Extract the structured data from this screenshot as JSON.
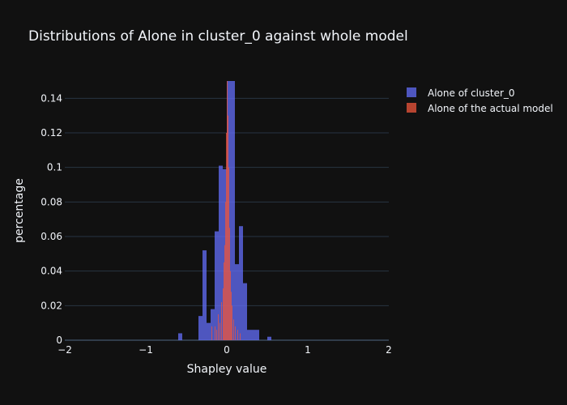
{
  "chart_data": {
    "type": "bar",
    "title": "Distributions of Alone in cluster_0 against whole model",
    "xlabel": "Shapley value",
    "ylabel": "percentage",
    "xlim": [
      -2,
      2
    ],
    "ylim": [
      0,
      0.15
    ],
    "x_ticks": [
      "−2",
      "−1",
      "0",
      "1",
      "2"
    ],
    "y_ticks": [
      "0",
      "0.02",
      "0.04",
      "0.06",
      "0.08",
      "0.1",
      "0.12",
      "0.14"
    ],
    "y_tick_values": [
      0,
      0.02,
      0.04,
      0.06,
      0.08,
      0.1,
      0.12,
      0.14
    ],
    "grid": true,
    "legend_position": "top-right",
    "series": [
      {
        "name": "Alone of cluster_0",
        "color": "#636efa",
        "bin_width": 0.05,
        "bins": [
          [
            -0.6,
            0.004
          ],
          [
            -0.35,
            0.014
          ],
          [
            -0.3,
            0.052
          ],
          [
            -0.25,
            0.01
          ],
          [
            -0.2,
            0.018
          ],
          [
            -0.15,
            0.063
          ],
          [
            -0.1,
            0.101
          ],
          [
            -0.05,
            0.099
          ],
          [
            0.0,
            0.15
          ],
          [
            0.05,
            0.15
          ],
          [
            0.1,
            0.044
          ],
          [
            0.15,
            0.066
          ],
          [
            0.2,
            0.033
          ],
          [
            0.25,
            0.006
          ],
          [
            0.3,
            0.006
          ],
          [
            0.35,
            0.006
          ],
          [
            0.5,
            0.002
          ]
        ]
      },
      {
        "name": "Alone of the actual model",
        "color": "#ef553b",
        "bin_width": 0.01,
        "bins": [
          [
            -0.19,
            0.008
          ],
          [
            -0.15,
            0.008
          ],
          [
            -0.13,
            0.006
          ],
          [
            -0.11,
            0.015
          ],
          [
            -0.09,
            0.01
          ],
          [
            -0.07,
            0.022
          ],
          [
            -0.05,
            0.03
          ],
          [
            -0.04,
            0.045
          ],
          [
            -0.03,
            0.055
          ],
          [
            -0.02,
            0.08
          ],
          [
            -0.01,
            0.12
          ],
          [
            0.0,
            0.15
          ],
          [
            0.01,
            0.13
          ],
          [
            0.02,
            0.1
          ],
          [
            0.03,
            0.065
          ],
          [
            0.04,
            0.04
          ],
          [
            0.05,
            0.028
          ],
          [
            0.06,
            0.02
          ],
          [
            0.08,
            0.012
          ],
          [
            0.1,
            0.008
          ],
          [
            0.13,
            0.006
          ],
          [
            0.16,
            0.004
          ]
        ]
      }
    ]
  }
}
